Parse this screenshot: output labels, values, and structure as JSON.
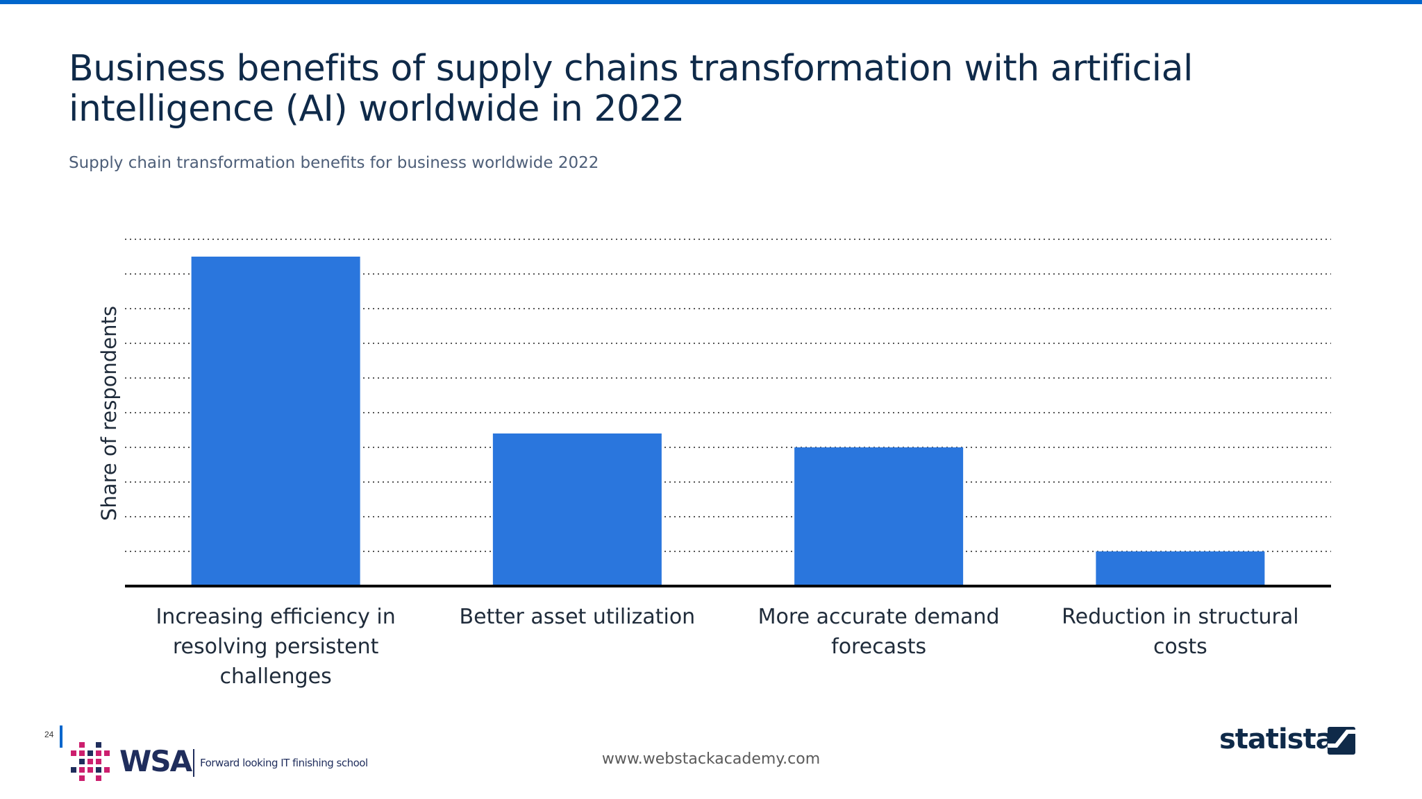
{
  "header": {
    "title": "Business benefits of supply chains transformation with artificial intelligence (AI) worldwide in 2022",
    "subtitle": "Supply chain transformation benefits for business worldwide 2022"
  },
  "chart_data": {
    "type": "bar",
    "categories": [
      "Increasing efficiency in resolving persistent challenges",
      "Better asset utilization",
      "More accurate demand forecasts",
      "Reduction in structural costs"
    ],
    "values": [
      47.5,
      22,
      20,
      5
    ],
    "ylim": [
      0,
      50
    ],
    "ylabel": "Share of respondents",
    "grid": true,
    "legend": "none"
  },
  "footer": {
    "page_number": "24",
    "brand_name": "WSA",
    "brand_tagline": "Forward looking IT finishing school",
    "url": "www.webstackacademy.com",
    "source_brand": "statista"
  },
  "colors": {
    "bar": "#2a76dd",
    "accent": "#0066cc",
    "title": "#0f2a49",
    "axis": "#000000",
    "grid": "#555555",
    "wsa_pink": "#cc1f6e",
    "wsa_navy": "#1f2d5c"
  }
}
